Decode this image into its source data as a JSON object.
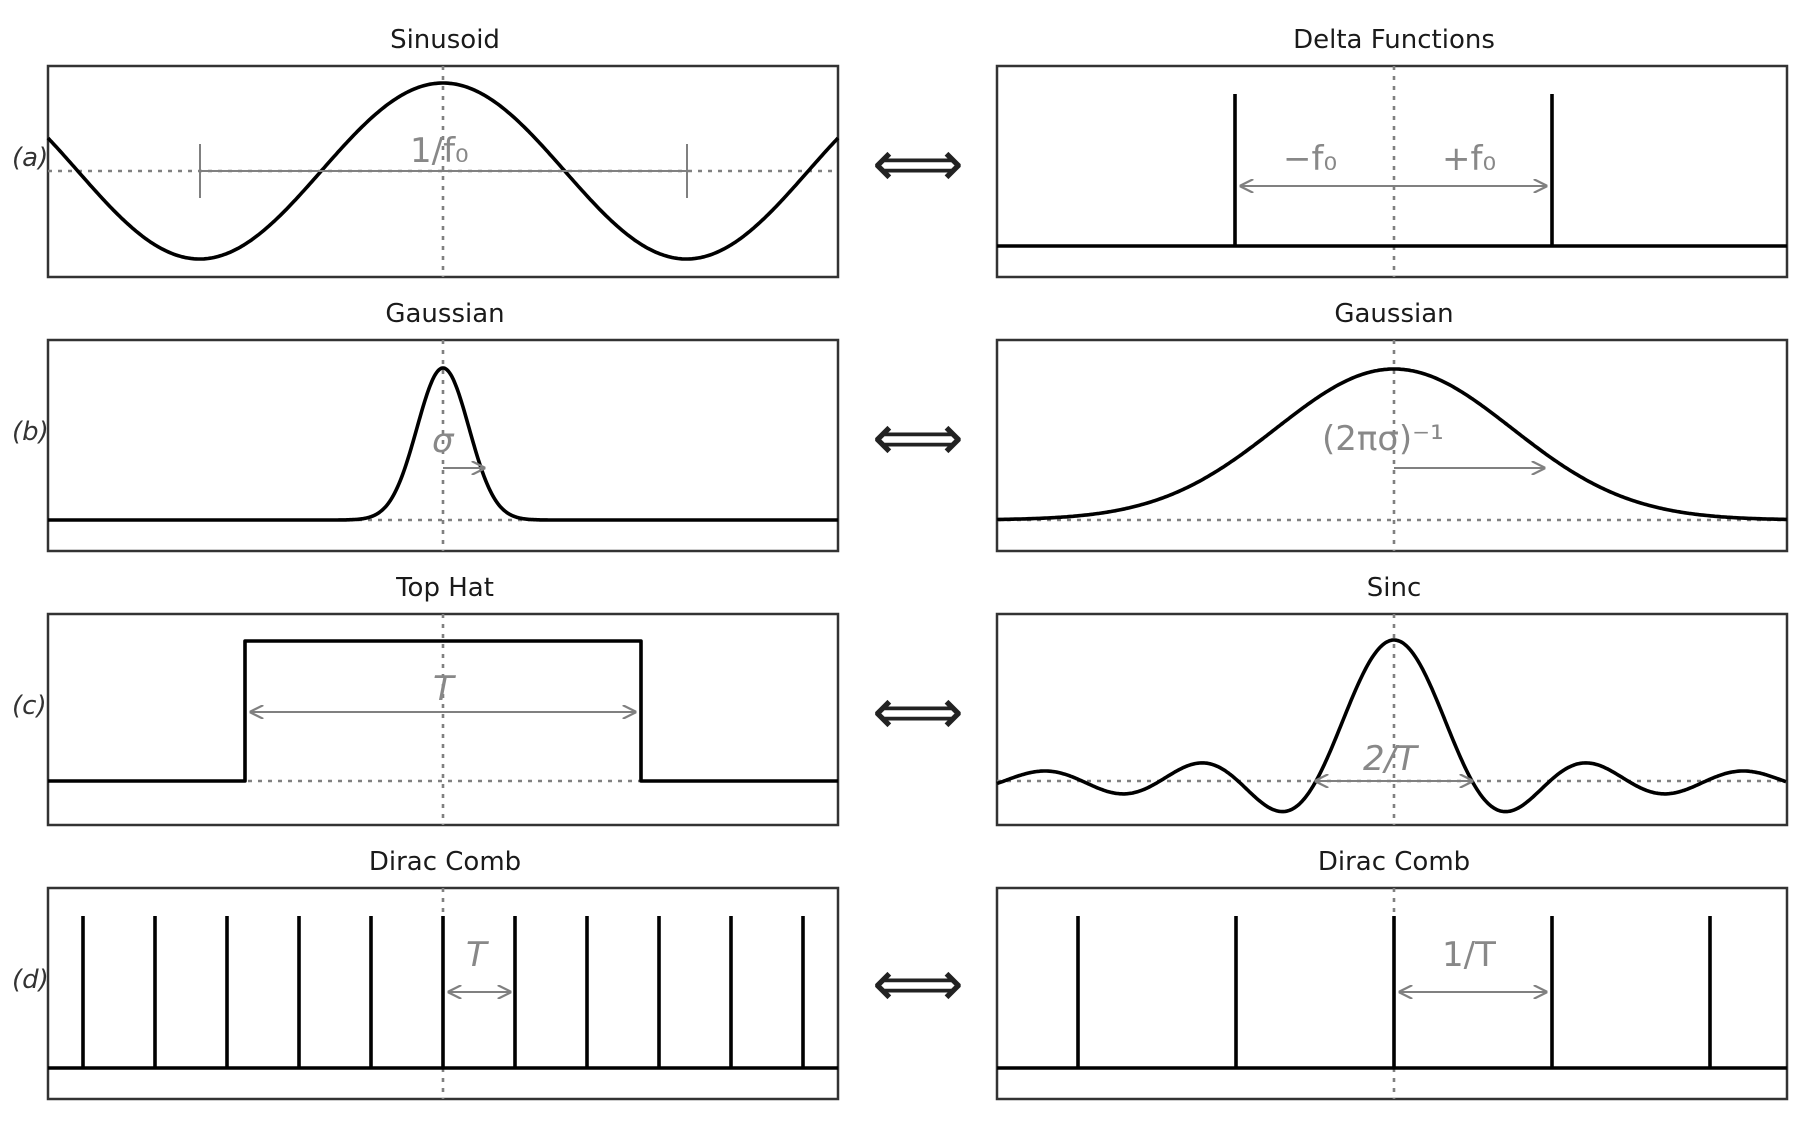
{
  "rows": [
    {
      "row_label": "(a)",
      "left": {
        "title": "Sinusoid",
        "annotation": "1/f₀",
        "icon": "sinusoid-wave"
      },
      "right": {
        "title": "Delta Functions",
        "annotation_left": "−f₀",
        "annotation_right": "+f₀",
        "icon": "delta-pair"
      }
    },
    {
      "row_label": "(b)",
      "left": {
        "title": "Gaussian",
        "annotation": "σ",
        "icon": "narrow-gaussian"
      },
      "right": {
        "title": "Gaussian",
        "annotation": "(2πσ)⁻¹",
        "icon": "wide-gaussian"
      }
    },
    {
      "row_label": "(c)",
      "left": {
        "title": "Top Hat",
        "annotation": "T",
        "icon": "top-hat"
      },
      "right": {
        "title": "Sinc",
        "annotation": "2/T",
        "icon": "sinc"
      }
    },
    {
      "row_label": "(d)",
      "left": {
        "title": "Dirac Comb",
        "annotation": "T",
        "icon": "dirac-comb-dense"
      },
      "right": {
        "title": "Dirac Comb",
        "annotation": "1/T",
        "icon": "dirac-comb-sparse"
      }
    }
  ],
  "transform_symbol": "⟺",
  "colors": {
    "curve": "#000000",
    "annotation": "#888888",
    "frame": "#333333"
  }
}
